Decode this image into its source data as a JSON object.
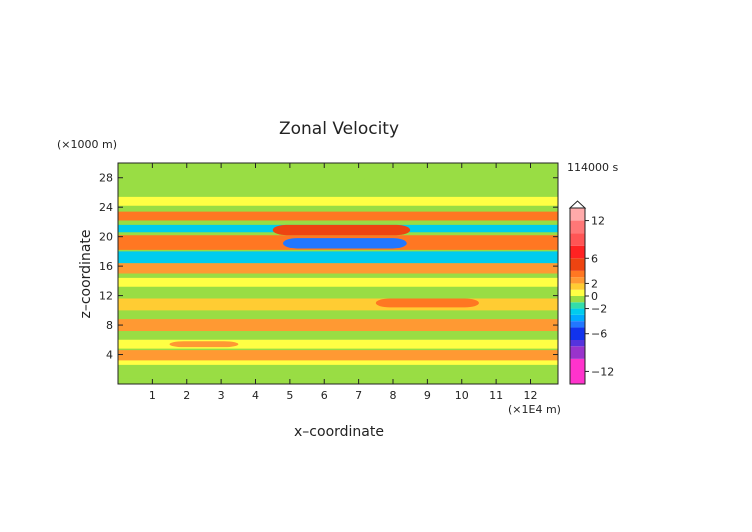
{
  "chart_data": {
    "type": "heatmap",
    "title": "Zonal Velocity",
    "xlabel": "x–coordinate",
    "ylabel": "z–coordinate",
    "x_unit": "(×1E4 m)",
    "y_unit": "(×1000 m)",
    "time_label": "114000 s",
    "xlim": [
      0,
      12.8
    ],
    "ylim": [
      0,
      30
    ],
    "x_ticks": [
      1,
      2,
      3,
      4,
      5,
      6,
      7,
      8,
      9,
      10,
      11,
      12
    ],
    "y_ticks": [
      4,
      8,
      12,
      16,
      20,
      24,
      28
    ],
    "colorbar": {
      "range": [
        -14,
        14
      ],
      "tick_values": [
        12,
        6,
        2,
        0,
        -2,
        -6,
        -12
      ],
      "tick_labels": [
        "12",
        "6",
        "2",
        "0",
        "−2",
        "−6",
        "−12"
      ],
      "levels": [
        {
          "from": -14,
          "to": -10,
          "color": "#ff33cc"
        },
        {
          "from": -10,
          "to": -8,
          "color": "#9933cc"
        },
        {
          "from": -8,
          "to": -7,
          "color": "#5533dd"
        },
        {
          "from": -7,
          "to": -5,
          "color": "#1133ee"
        },
        {
          "from": -5,
          "to": -4,
          "color": "#2277ff"
        },
        {
          "from": -4,
          "to": -3,
          "color": "#00aaff"
        },
        {
          "from": -3,
          "to": -2,
          "color": "#00ccee"
        },
        {
          "from": -2,
          "to": -1,
          "color": "#33ddaa"
        },
        {
          "from": -1,
          "to": 0,
          "color": "#99dd44"
        },
        {
          "from": 0,
          "to": 1,
          "color": "#ffff44"
        },
        {
          "from": 1,
          "to": 2,
          "color": "#ffcc33"
        },
        {
          "from": 2,
          "to": 3,
          "color": "#ff9933"
        },
        {
          "from": 3,
          "to": 4,
          "color": "#ff7722"
        },
        {
          "from": 4,
          "to": 6,
          "color": "#ee4411"
        },
        {
          "from": 6,
          "to": 8,
          "color": "#ff2222"
        },
        {
          "from": 8,
          "to": 10,
          "color": "#ff5555"
        },
        {
          "from": 10,
          "to": 12,
          "color": "#ff7777"
        },
        {
          "from": 12,
          "to": 14,
          "color": "#ffaaaa"
        }
      ]
    },
    "field": {
      "background_value": -0.5,
      "features": [
        {
          "x": [
            0,
            12.8
          ],
          "z": [
            0.8,
            2.2
          ],
          "value": -0.2
        },
        {
          "x": [
            0,
            12.8
          ],
          "z": [
            2.6,
            3.8
          ],
          "value": 0.5
        },
        {
          "x": [
            0,
            12.8
          ],
          "z": [
            3.2,
            4.6
          ],
          "value": 2.8
        },
        {
          "x": [
            0,
            12.8
          ],
          "z": [
            4.8,
            6.0
          ],
          "value": 0.4
        },
        {
          "x": [
            1.5,
            3.5
          ],
          "z": [
            5.0,
            5.8
          ],
          "value": 2.0
        },
        {
          "x": [
            0,
            12.8
          ],
          "z": [
            7.2,
            8.8
          ],
          "value": 2.5
        },
        {
          "x": [
            0,
            12.8
          ],
          "z": [
            10.0,
            11.6
          ],
          "value": 1.5
        },
        {
          "x": [
            7.5,
            10.5
          ],
          "z": [
            10.4,
            11.6
          ],
          "value": 3.2
        },
        {
          "x": [
            0,
            12.8
          ],
          "z": [
            13.2,
            14.4
          ],
          "value": 0.3
        },
        {
          "x": [
            0,
            12.8
          ],
          "z": [
            15.0,
            16.4
          ],
          "value": 2.8
        },
        {
          "x": [
            0,
            12.8
          ],
          "z": [
            16.4,
            18.0
          ],
          "value": -2.8
        },
        {
          "x": [
            0,
            12.8
          ],
          "z": [
            18.2,
            20.2
          ],
          "value": 3.5
        },
        {
          "x": [
            4.8,
            8.4
          ],
          "z": [
            18.4,
            19.8
          ],
          "value": -5.0
        },
        {
          "x": [
            0,
            12.8
          ],
          "z": [
            20.6,
            21.6
          ],
          "value": -2.5
        },
        {
          "x": [
            4.5,
            8.5
          ],
          "z": [
            20.2,
            21.6
          ],
          "value": 4.2
        },
        {
          "x": [
            0,
            12.8
          ],
          "z": [
            22.2,
            23.4
          ],
          "value": 3.0
        },
        {
          "x": [
            0,
            12.8
          ],
          "z": [
            24.2,
            25.4
          ],
          "value": 0.5
        },
        {
          "x": [
            7.0,
            12.8
          ],
          "z": [
            26.0,
            28.0
          ],
          "value": -0.4
        }
      ]
    }
  }
}
